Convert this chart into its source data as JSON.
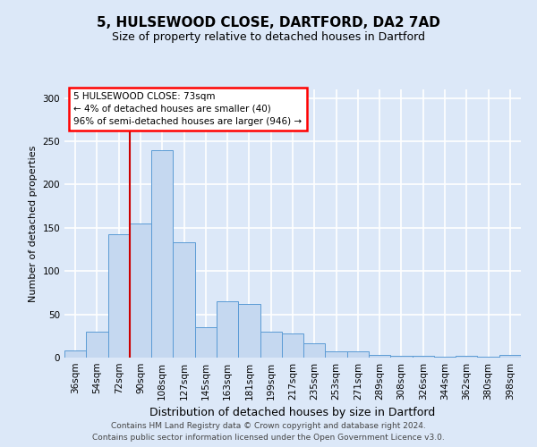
{
  "title1": "5, HULSEWOOD CLOSE, DARTFORD, DA2 7AD",
  "title2": "Size of property relative to detached houses in Dartford",
  "xlabel": "Distribution of detached houses by size in Dartford",
  "ylabel": "Number of detached properties",
  "categories": [
    "36sqm",
    "54sqm",
    "72sqm",
    "90sqm",
    "108sqm",
    "127sqm",
    "145sqm",
    "163sqm",
    "181sqm",
    "199sqm",
    "217sqm",
    "235sqm",
    "253sqm",
    "271sqm",
    "289sqm",
    "308sqm",
    "326sqm",
    "344sqm",
    "362sqm",
    "380sqm",
    "398sqm"
  ],
  "values": [
    8,
    30,
    143,
    155,
    240,
    133,
    35,
    65,
    62,
    30,
    28,
    17,
    7,
    7,
    3,
    2,
    2,
    1,
    2,
    1,
    3
  ],
  "bar_color": "#c5d8f0",
  "bar_edge_color": "#5b9bd5",
  "annotation_text": "5 HULSEWOOD CLOSE: 73sqm\n← 4% of detached houses are smaller (40)\n96% of semi-detached houses are larger (946) →",
  "vline_x": 2.5,
  "vline_color": "#cc0000",
  "annotation_box_facecolor": "white",
  "annotation_box_edgecolor": "red",
  "footer1": "Contains HM Land Registry data © Crown copyright and database right 2024.",
  "footer2": "Contains public sector information licensed under the Open Government Licence v3.0.",
  "background_color": "#dce8f8",
  "ylim_max": 310,
  "yticks": [
    0,
    50,
    100,
    150,
    200,
    250,
    300
  ],
  "grid_color": "#ffffff",
  "title1_fontsize": 11,
  "title2_fontsize": 9,
  "ylabel_fontsize": 8,
  "xlabel_fontsize": 9,
  "tick_fontsize": 7.5,
  "footer_fontsize": 6.5
}
